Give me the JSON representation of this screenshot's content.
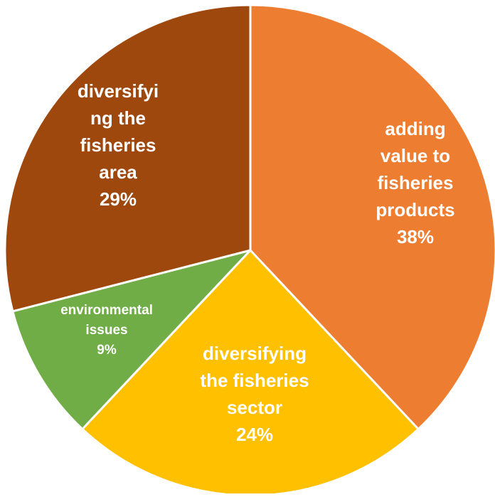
{
  "chart_data": {
    "type": "pie",
    "title": "",
    "slices": [
      {
        "label_lines": [
          "adding",
          "value to",
          "fisheries",
          "products"
        ],
        "percent_label": "38%",
        "value": 38,
        "color": "#ED7D31"
      },
      {
        "label_lines": [
          "diversifying",
          "the fisheries",
          "sector"
        ],
        "percent_label": "24%",
        "value": 24,
        "color": "#FFC000"
      },
      {
        "label_lines": [
          "environmental",
          "issues"
        ],
        "percent_label": "9%",
        "value": 9,
        "color": "#70AD47"
      },
      {
        "label_lines": [
          "diversifyi",
          "ng the",
          "fisheries",
          "area"
        ],
        "percent_label": "29%",
        "value": 29,
        "color": "#9E480E"
      }
    ]
  }
}
